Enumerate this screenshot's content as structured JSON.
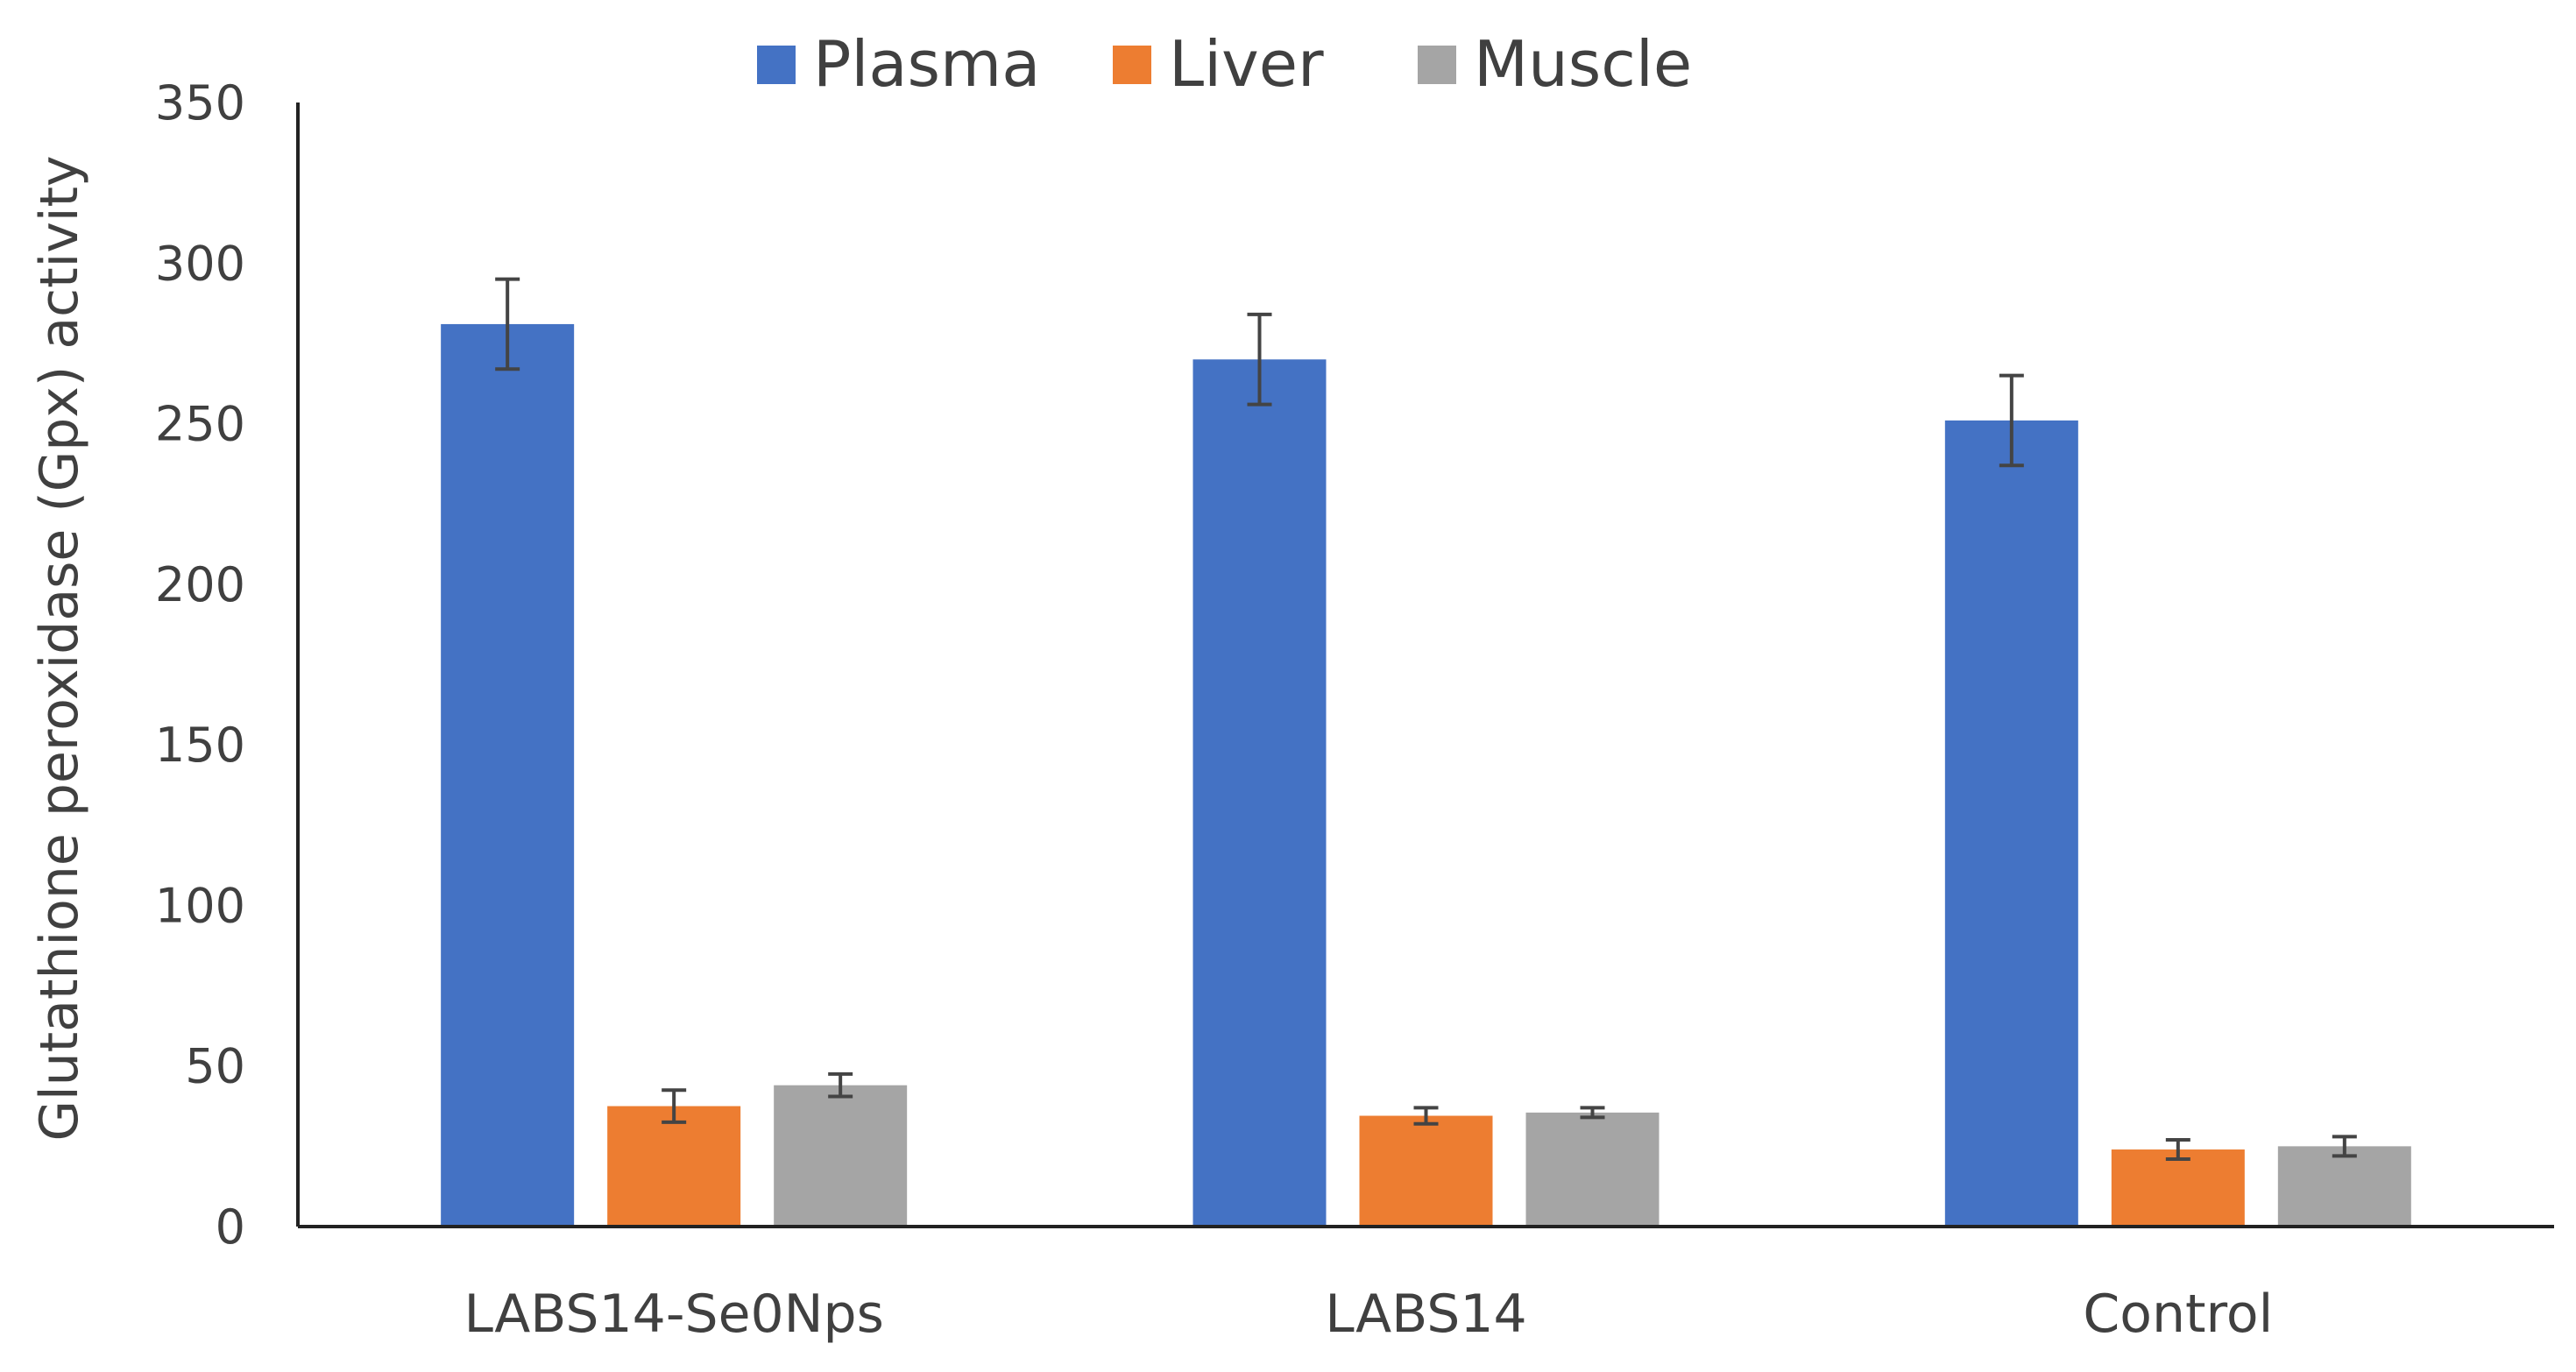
{
  "chart_data": {
    "type": "bar",
    "title": "",
    "xlabel": "",
    "ylabel": "Glutathione peroxidase (Gpx) activity",
    "ylim": [
      0,
      350
    ],
    "yticks": [
      0,
      50,
      100,
      150,
      200,
      250,
      300,
      350
    ],
    "grid": false,
    "legend_position": "top",
    "categories": [
      "LABS14-Se0Nps",
      "LABS14",
      "Control"
    ],
    "series": [
      {
        "name": "Plasma",
        "color": "#4472C4",
        "values": [
          281,
          270,
          251
        ],
        "errors": [
          14,
          14,
          14
        ]
      },
      {
        "name": "Liver",
        "color": "#ED7D31",
        "values": [
          37.5,
          34.5,
          24
        ],
        "errors": [
          5,
          2.5,
          3
        ]
      },
      {
        "name": "Muscle",
        "color": "#A5A5A5",
        "values": [
          44,
          35.5,
          25
        ],
        "errors": [
          3.5,
          1.5,
          3
        ]
      }
    ]
  }
}
